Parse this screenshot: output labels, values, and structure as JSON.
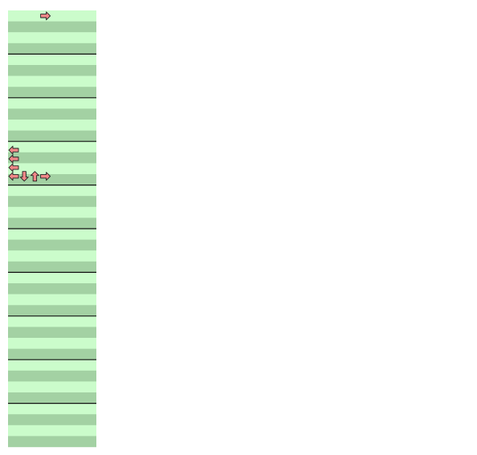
{
  "colors": {
    "background": "#ffffff",
    "stripe_light": "#cbfccb",
    "stripe_dark": "#a3d1a3",
    "measure_line": "#111111",
    "arrow_red": "#f08888",
    "arrow_blue": "#8888ee",
    "arrow_outline": "#222222"
  },
  "icons": {
    "arrow_glyphs": [
      "left-arrow-icon",
      "down-arrow-icon",
      "up-arrow-icon",
      "right-arrow-icon"
    ]
  },
  "chart_data": {
    "type": "step-chart",
    "lanes": [
      "left",
      "down",
      "up",
      "right"
    ],
    "columns": [
      {
        "measures": 10,
        "notes": [
          {
            "t": 0.125,
            "lane": 3,
            "color": "red"
          },
          {
            "t": 3.2,
            "lane": 0,
            "color": "red"
          },
          {
            "t": 3.4,
            "lane": 0,
            "color": "red"
          },
          {
            "t": 3.6,
            "lane": 0,
            "color": "red"
          },
          {
            "t": 3.8,
            "lane": 0,
            "color": "red"
          },
          {
            "t": 3.8,
            "lane": 1,
            "color": "red"
          },
          {
            "t": 3.8,
            "lane": 2,
            "color": "red"
          },
          {
            "t": 3.8,
            "lane": 3,
            "color": "red"
          }
        ]
      }
    ]
  }
}
